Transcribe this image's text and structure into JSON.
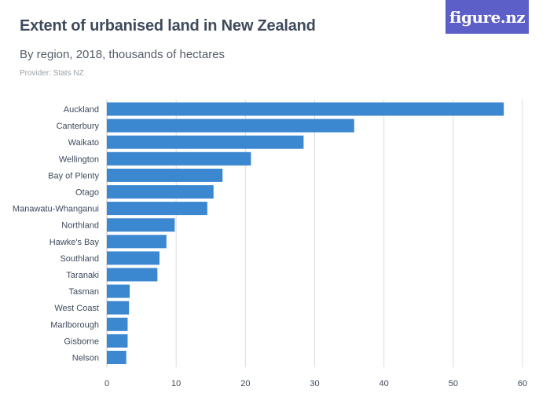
{
  "header": {
    "title": "Extent of urbanised land in New Zealand",
    "subtitle": "By region, 2018, thousands of hectares",
    "provider": "Provider: Stats NZ",
    "logo_text": "figure.nz"
  },
  "colors": {
    "bar": "#3b87d0",
    "grid": "#dcdcdc",
    "logo_bg": "#5b5fc7"
  },
  "chart_data": {
    "type": "bar",
    "orientation": "horizontal",
    "categories": [
      "Auckland",
      "Canterbury",
      "Waikato",
      "Wellington",
      "Bay of Plenty",
      "Otago",
      "Manawatu-Whanganui",
      "Northland",
      "Hawke's Bay",
      "Southland",
      "Taranaki",
      "Tasman",
      "West Coast",
      "Marlborough",
      "Gisborne",
      "Nelson"
    ],
    "values": [
      57.3,
      35.7,
      28.4,
      20.8,
      16.7,
      15.4,
      14.5,
      9.8,
      8.6,
      7.6,
      7.3,
      3.3,
      3.2,
      3.0,
      3.0,
      2.8
    ],
    "xlim": [
      0,
      60
    ],
    "xticks": [
      0,
      10,
      20,
      30,
      40,
      50,
      60
    ],
    "grid": true,
    "title": "Extent of urbanised land in New Zealand",
    "xlabel": "",
    "ylabel": ""
  }
}
